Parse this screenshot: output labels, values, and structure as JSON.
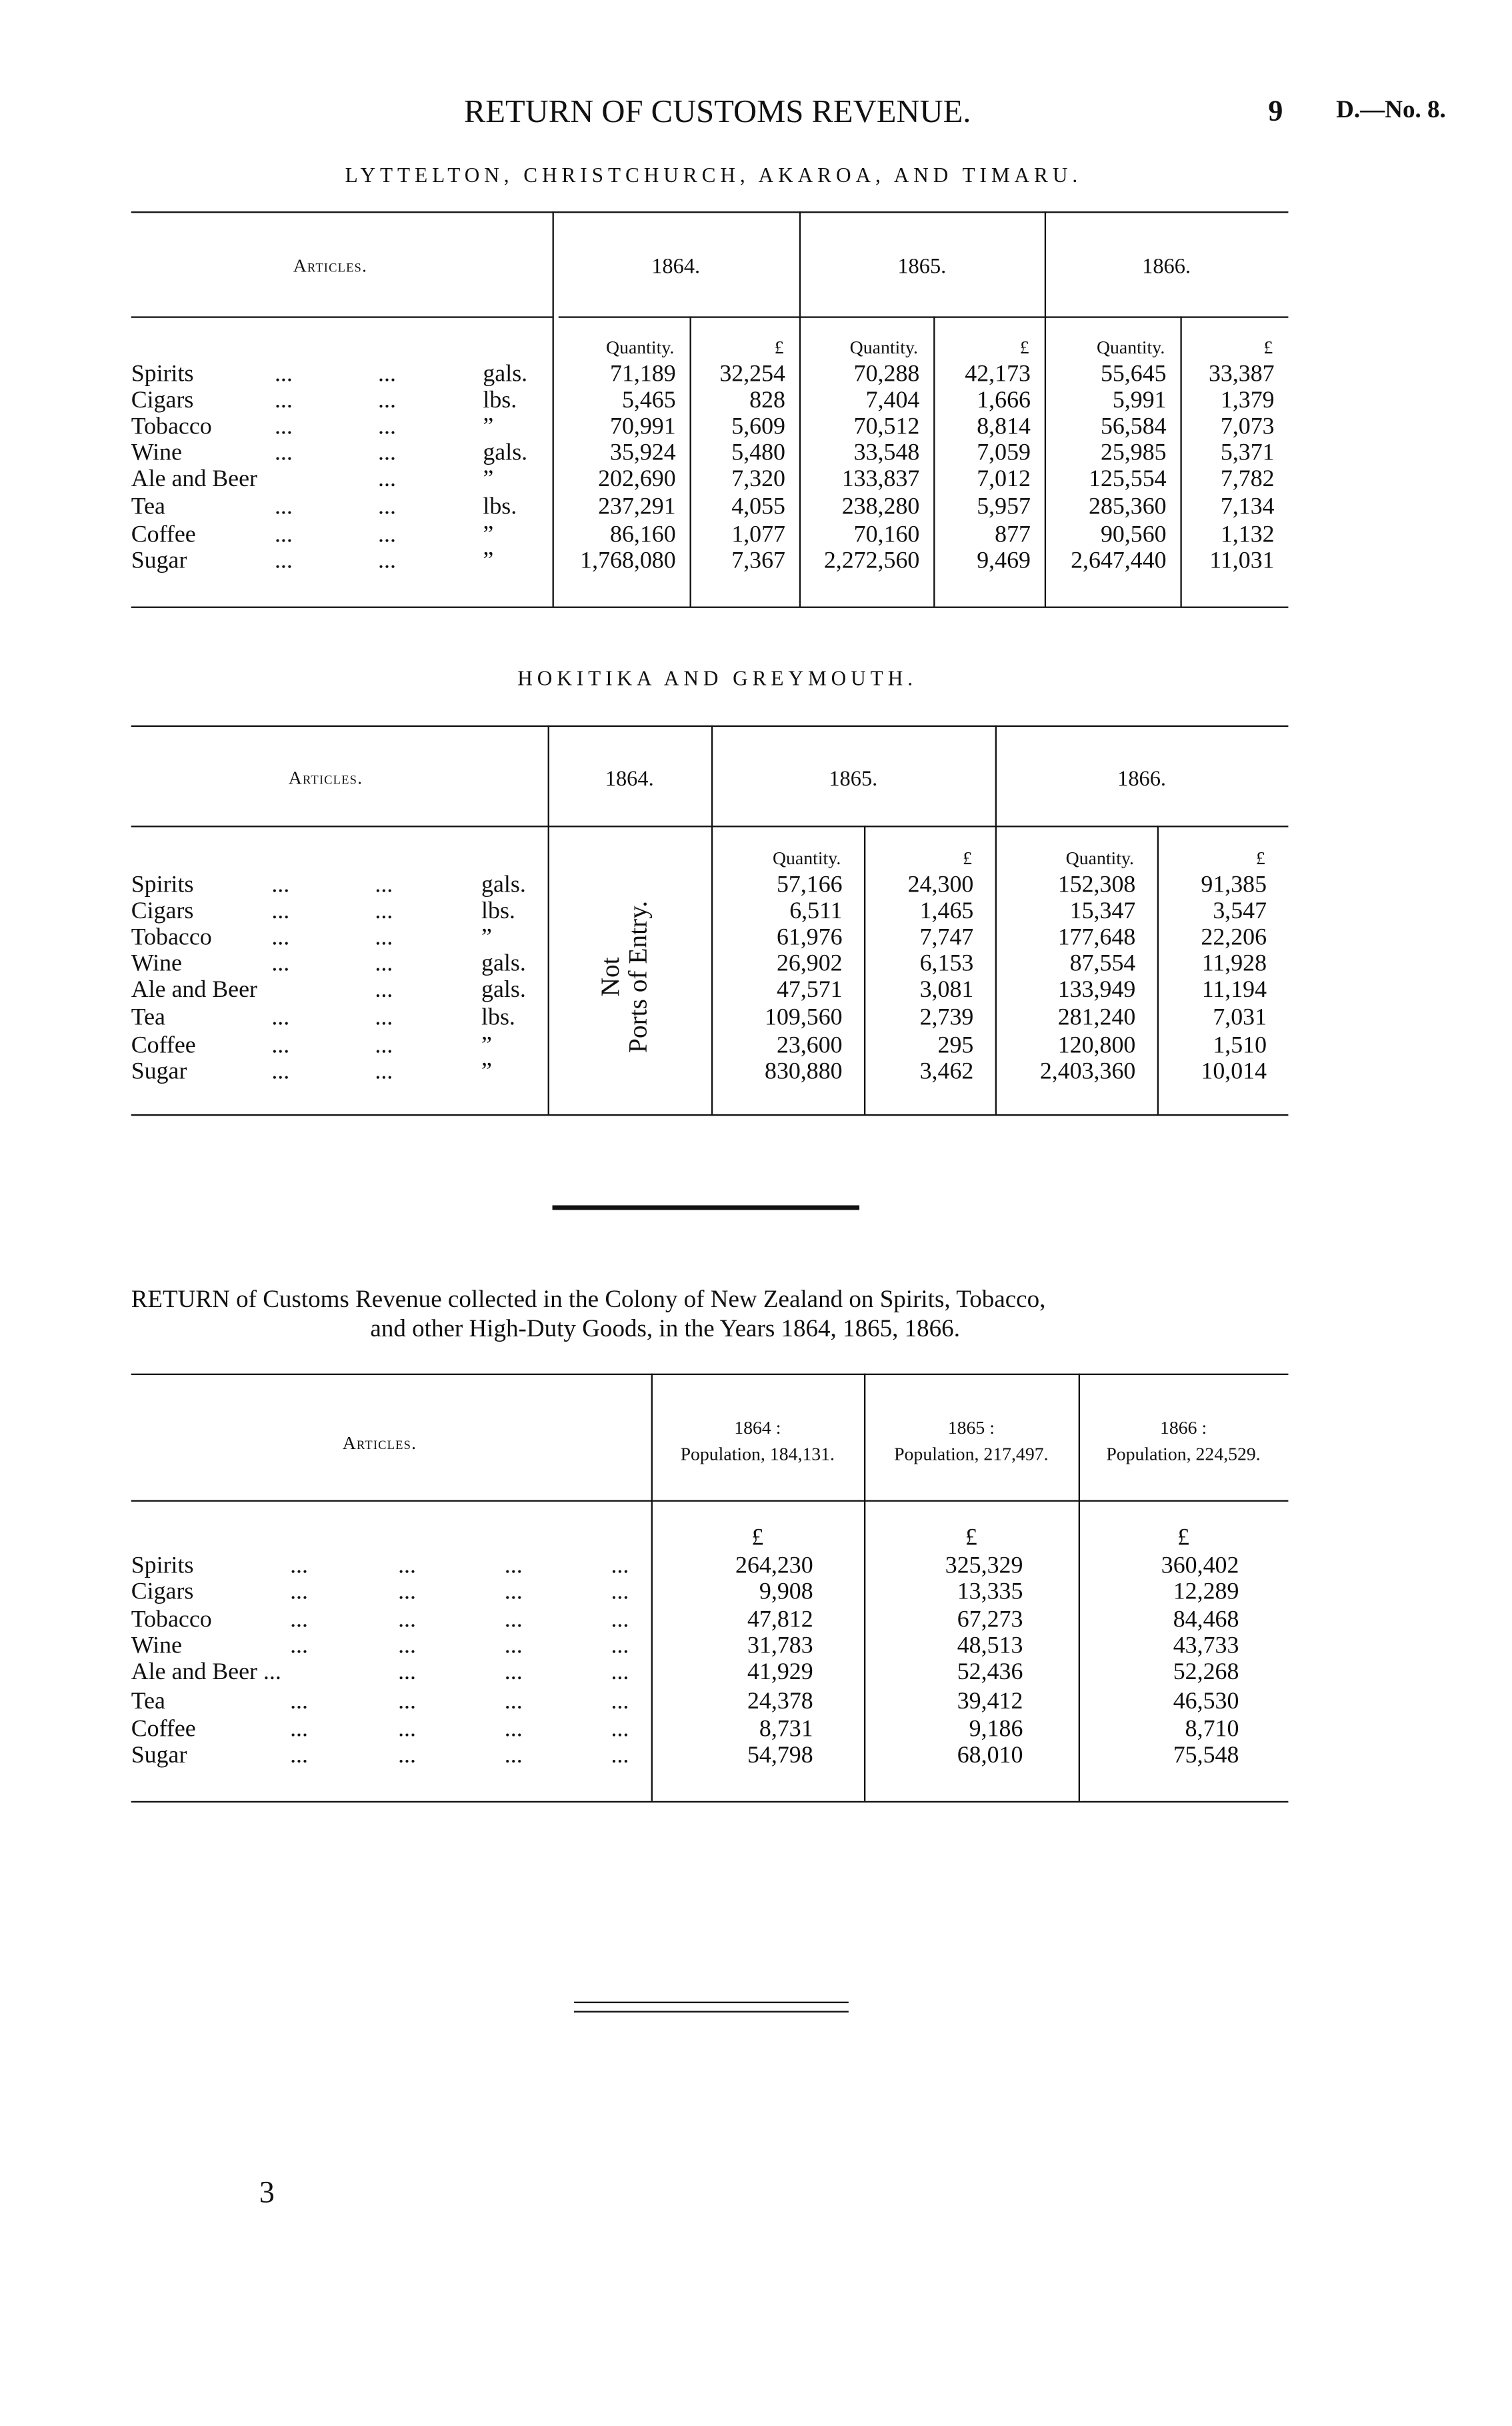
{
  "header": {
    "title": "RETURN OF CUSTOMS REVENUE.",
    "page_number": "9",
    "doc_ref": "D.—No. 8."
  },
  "tables": [
    {
      "title": "LYTTELTON, CHRISTCHURCH, AKAROA, AND TIMARU.",
      "articles_label": "Articles.",
      "years": [
        "1864.",
        "1865.",
        "1866."
      ],
      "subheaders": [
        "Quantity.",
        "£"
      ],
      "rows": [
        {
          "article": "Spirits",
          "dots": [
            "...",
            "..."
          ],
          "unit": "gals.",
          "values": [
            "71,189",
            "32,254",
            "70,288",
            "42,173",
            "55,645",
            "33,387"
          ]
        },
        {
          "article": "Cigars",
          "dots": [
            "...",
            "..."
          ],
          "unit": "lbs.",
          "values": [
            "5,465",
            "828",
            "7,404",
            "1,666",
            "5,991",
            "1,379"
          ]
        },
        {
          "article": "Tobacco",
          "dots": [
            "...",
            "..."
          ],
          "unit": "”",
          "values": [
            "70,991",
            "5,609",
            "70,512",
            "8,814",
            "56,584",
            "7,073"
          ]
        },
        {
          "article": "Wine",
          "dots": [
            "...",
            "..."
          ],
          "unit": "gals.",
          "values": [
            "35,924",
            "5,480",
            "33,548",
            "7,059",
            "25,985",
            "5,371"
          ]
        },
        {
          "article": "Ale and Beer",
          "dots": [
            "",
            "..."
          ],
          "unit": "”",
          "values": [
            "202,690",
            "7,320",
            "133,837",
            "7,012",
            "125,554",
            "7,782"
          ]
        },
        {
          "article": "Tea",
          "dots": [
            "...",
            "..."
          ],
          "unit": "lbs.",
          "values": [
            "237,291",
            "4,055",
            "238,280",
            "5,957",
            "285,360",
            "7,134"
          ]
        },
        {
          "article": "Coffee",
          "dots": [
            "...",
            "..."
          ],
          "unit": "”",
          "values": [
            "86,160",
            "1,077",
            "70,160",
            "877",
            "90,560",
            "1,132"
          ]
        },
        {
          "article": "Sugar",
          "dots": [
            "...",
            "..."
          ],
          "unit": "”",
          "values": [
            "1,768,080",
            "7,367",
            "2,272,560",
            "9,469",
            "2,647,440",
            "11,031"
          ]
        }
      ]
    },
    {
      "title": "HOKITIKA AND GREYMOUTH.",
      "articles_label": "Articles.",
      "years": [
        "1864.",
        "1865.",
        "1866."
      ],
      "subheaders": [
        "Quantity.",
        "£"
      ],
      "not_ports_line1": "Not",
      "not_ports_line2": "Ports of Entry.",
      "rows": [
        {
          "article": "Spirits",
          "dots": [
            "...",
            "..."
          ],
          "unit": "gals.",
          "values": [
            "57,166",
            "24,300",
            "152,308",
            "91,385"
          ]
        },
        {
          "article": "Cigars",
          "dots": [
            "...",
            "..."
          ],
          "unit": "lbs.",
          "values": [
            "6,511",
            "1,465",
            "15,347",
            "3,547"
          ]
        },
        {
          "article": "Tobacco",
          "dots": [
            "...",
            "..."
          ],
          "unit": "”",
          "values": [
            "61,976",
            "7,747",
            "177,648",
            "22,206"
          ]
        },
        {
          "article": "Wine",
          "dots": [
            "...",
            "..."
          ],
          "unit": "gals.",
          "values": [
            "26,902",
            "6,153",
            "87,554",
            "11,928"
          ]
        },
        {
          "article": "Ale and Beer",
          "dots": [
            "",
            "..."
          ],
          "unit": "gals.",
          "values": [
            "47,571",
            "3,081",
            "133,949",
            "11,194"
          ]
        },
        {
          "article": "Tea",
          "dots": [
            "...",
            "..."
          ],
          "unit": "lbs.",
          "values": [
            "109,560",
            "2,739",
            "281,240",
            "7,031"
          ]
        },
        {
          "article": "Coffee",
          "dots": [
            "...",
            "..."
          ],
          "unit": "”",
          "values": [
            "23,600",
            "295",
            "120,800",
            "1,510"
          ]
        },
        {
          "article": "Sugar",
          "dots": [
            "...",
            "..."
          ],
          "unit": "”",
          "values": [
            "830,880",
            "3,462",
            "2,403,360",
            "10,014"
          ]
        }
      ]
    },
    {
      "caption_line1": "RETURN of Customs Revenue collected in the Colony of New Zealand on Spirits, Tobacco,",
      "caption_line2": "and other High-Duty Goods, in the Years 1864, 1865, 1866.",
      "articles_label": "Articles.",
      "years": [
        "1864 :",
        "1865 :",
        "1866 :"
      ],
      "populations": [
        "Population, 184,131.",
        "Population, 217,497.",
        "Population, 224,529."
      ],
      "unit_header": "£",
      "rows": [
        {
          "article": "Spirits",
          "dots": [
            "...",
            "...",
            "...",
            "..."
          ],
          "values": [
            "264,230",
            "325,329",
            "360,402"
          ]
        },
        {
          "article": "Cigars",
          "dots": [
            "...",
            "...",
            "...",
            "..."
          ],
          "values": [
            "9,908",
            "13,335",
            "12,289"
          ]
        },
        {
          "article": "Tobacco",
          "dots": [
            "...",
            "...",
            "...",
            "..."
          ],
          "values": [
            "47,812",
            "67,273",
            "84,468"
          ]
        },
        {
          "article": "Wine",
          "dots": [
            "...",
            "...",
            "...",
            "..."
          ],
          "values": [
            "31,783",
            "48,513",
            "43,733"
          ]
        },
        {
          "article": "Ale and Beer ...",
          "dots": [
            "",
            "...",
            "...",
            "..."
          ],
          "values": [
            "41,929",
            "52,436",
            "52,268"
          ]
        },
        {
          "article": "Tea",
          "dots": [
            "...",
            "...",
            "...",
            "..."
          ],
          "values": [
            "24,378",
            "39,412",
            "46,530"
          ]
        },
        {
          "article": "Coffee",
          "dots": [
            "...",
            "...",
            "...",
            "..."
          ],
          "values": [
            "8,731",
            "9,186",
            "8,710"
          ]
        },
        {
          "article": "Sugar",
          "dots": [
            "...",
            "...",
            "...",
            "..."
          ],
          "values": [
            "54,798",
            "68,010",
            "75,548"
          ]
        }
      ]
    }
  ],
  "footer": {
    "signature_number": "3"
  }
}
